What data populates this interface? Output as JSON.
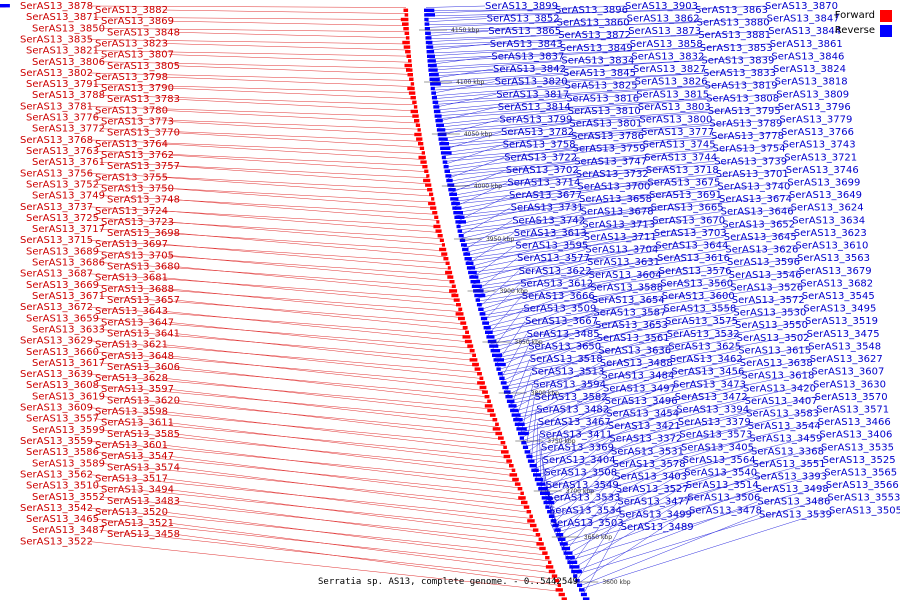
{
  "legend": {
    "forward_label": "Forward",
    "reverse_label": "Reverse",
    "forward_color": "#ff0000",
    "reverse_color": "#0000ff"
  },
  "caption": "Serratia sp. AS13, complete genome. - 0..5442549",
  "colors": {
    "forward_text": "#cc0000",
    "reverse_text": "#0000cc",
    "forward_line": "#e03030",
    "reverse_line": "#3030e0",
    "backbone": "#555555"
  },
  "ticks": [
    "4150 kbp",
    "4100 kbp",
    "4050 kbp",
    "4000 kbp",
    "3950 kbp",
    "3900 kbp",
    "3850 kbp",
    "3800 kbp",
    "3750 kbp",
    "3700 kbp",
    "3650 kbp",
    "3600 kbp"
  ],
  "forward_labels": [
    "SerAS13_3878",
    "SerAS13_3882",
    "SerAS13_3871",
    "SerAS13_3869",
    "SerAS13_3850",
    "SerAS13_3848",
    "SerAS13_3835",
    "SerAS13_3823",
    "SerAS13_3821",
    "SerAS13_3807",
    "SerAS13_3806",
    "SerAS13_3805",
    "SerAS13_3802",
    "SerAS13_3798",
    "SerAS13_3791",
    "SerAS13_3790",
    "SerAS13_3788",
    "SerAS13_3783",
    "SerAS13_3781",
    "SerAS13_3780",
    "SerAS13_3776",
    "SerAS13_3773",
    "SerAS13_3772",
    "SerAS13_3770",
    "SerAS13_3768",
    "SerAS13_3764",
    "SerAS13_3763",
    "SerAS13_3762",
    "SerAS13_3761",
    "SerAS13_3757",
    "SerAS13_3756",
    "SerAS13_3755",
    "SerAS13_3752",
    "SerAS13_3750",
    "SerAS13_3749",
    "SerAS13_3748",
    "SerAS13_3737",
    "SerAS13_3724",
    "SerAS13_3725",
    "SerAS13_3723",
    "SerAS13_3717",
    "SerAS13_3698",
    "SerAS13_3715",
    "SerAS13_3697",
    "SerAS13_3689",
    "SerAS13_3705",
    "SerAS13_3686",
    "SerAS13_3680",
    "SerAS13_3687",
    "SerAS13_3681",
    "SerAS13_3669",
    "SerAS13_3688",
    "SerAS13_3671",
    "SerAS13_3657",
    "SerAS13_3672",
    "SerAS13_3643",
    "SerAS13_3659",
    "SerAS13_3647",
    "SerAS13_3633",
    "SerAS13_3641",
    "SerAS13_3629",
    "SerAS13_3621",
    "SerAS13_3660",
    "SerAS13_3648",
    "SerAS13_3617",
    "SerAS13_3606",
    "SerAS13_3639",
    "SerAS13_3628",
    "SerAS13_3608",
    "SerAS13_3597",
    "SerAS13_3619",
    "SerAS13_3620",
    "SerAS13_3609",
    "SerAS13_3598",
    "SerAS13_3557",
    "SerAS13_3611",
    "SerAS13_3599",
    "SerAS13_3585",
    "SerAS13_3559",
    "SerAS13_3601",
    "SerAS13_3586",
    "SerAS13_3547",
    "SerAS13_3589",
    "SerAS13_3574",
    "SerAS13_3562",
    "SerAS13_3517",
    "SerAS13_3510",
    "SerAS13_3494",
    "SerAS13_3552",
    "SerAS13_3483",
    "SerAS13_3542",
    "SerAS13_3520",
    "SerAS13_3465",
    "SerAS13_3521",
    "SerAS13_3487",
    "SerAS13_3458",
    "SerAS13_3522"
  ],
  "reverse_labels": [
    "SerAS13_3899",
    "SerAS13_3896",
    "SerAS13_3903",
    "SerAS13_3863",
    "SerAS13_3870",
    "SerAS13_3852",
    "SerAS13_3860",
    "SerAS13_3862",
    "SerAS13_3880",
    "SerAS13_3847",
    "SerAS13_3865",
    "SerAS13_3872",
    "SerAS13_3873",
    "SerAS13_3881",
    "SerAS13_3844",
    "SerAS13_3843",
    "SerAS13_3849",
    "SerAS13_3858",
    "SerAS13_3853",
    "SerAS13_3861",
    "SerAS13_3837",
    "SerAS13_3834",
    "SerAS13_3832",
    "SerAS13_3839",
    "SerAS13_3846",
    "SerAS13_3842",
    "SerAS13_3845",
    "SerAS13_3827",
    "SerAS13_3833",
    "SerAS13_3824",
    "SerAS13_3820",
    "SerAS13_3825",
    "SerAS13_3826",
    "SerAS13_3819",
    "SerAS13_3818",
    "SerAS13_3817",
    "SerAS13_3816",
    "SerAS13_3815",
    "SerAS13_3808",
    "SerAS13_3809",
    "SerAS13_3814",
    "SerAS13_3810",
    "SerAS13_3803",
    "SerAS13_3795",
    "SerAS13_3796",
    "SerAS13_3799",
    "SerAS13_3801",
    "SerAS13_3800",
    "SerAS13_3789",
    "SerAS13_3779",
    "SerAS13_3782",
    "SerAS13_3786",
    "SerAS13_3777",
    "SerAS13_3778",
    "SerAS13_3766",
    "SerAS13_3758",
    "SerAS13_3759",
    "SerAS13_3745",
    "SerAS13_3754",
    "SerAS13_3743",
    "SerAS13_3722",
    "SerAS13_3747",
    "SerAS13_3744",
    "SerAS13_3739",
    "SerAS13_3721",
    "SerAS13_3702",
    "SerAS13_3732",
    "SerAS13_3718",
    "SerAS13_3701",
    "SerAS13_3746",
    "SerAS13_3714",
    "SerAS13_3700",
    "SerAS13_3675",
    "SerAS13_3740",
    "SerAS13_3699",
    "SerAS13_3677",
    "SerAS13_3658",
    "SerAS13_3691",
    "SerAS13_3674",
    "SerAS13_3649",
    "SerAS13_3731",
    "SerAS13_3678",
    "SerAS13_3665",
    "SerAS13_3646",
    "SerAS13_3624",
    "SerAS13_3742",
    "SerAS13_3713",
    "SerAS13_3670",
    "SerAS13_3652",
    "SerAS13_3634",
    "SerAS13_3613",
    "SerAS13_3711",
    "SerAS13_3703",
    "SerAS13_3645",
    "SerAS13_3623",
    "SerAS13_3595",
    "SerAS13_3704",
    "SerAS13_3644",
    "SerAS13_3626",
    "SerAS13_3610",
    "SerAS13_3577",
    "SerAS13_3631",
    "SerAS13_3616",
    "SerAS13_3596",
    "SerAS13_3563",
    "SerAS13_3622",
    "SerAS13_3604",
    "SerAS13_3576",
    "SerAS13_3546",
    "SerAS13_3679",
    "SerAS13_3612",
    "SerAS13_3588",
    "SerAS13_3560",
    "SerAS13_3526",
    "SerAS13_3682",
    "SerAS13_3666",
    "SerAS13_3654",
    "SerAS13_3600",
    "SerAS13_3572",
    "SerAS13_3545",
    "SerAS13_3509",
    "SerAS13_3587",
    "SerAS13_3558",
    "SerAS13_3530",
    "SerAS13_3495",
    "SerAS13_3667",
    "SerAS13_3653",
    "SerAS13_3575",
    "SerAS13_3550",
    "SerAS13_3519",
    "SerAS13_3485",
    "SerAS13_3561",
    "SerAS13_3532",
    "SerAS13_3502",
    "SerAS13_3475",
    "SerAS13_3650",
    "SerAS13_3636",
    "SerAS13_3625",
    "SerAS13_3615",
    "SerAS13_3548",
    "SerAS13_3518",
    "SerAS13_3488",
    "SerAS13_3462",
    "SerAS13_3638",
    "SerAS13_3627",
    "SerAS13_3513",
    "SerAS13_3484",
    "SerAS13_3456",
    "SerAS13_3618",
    "SerAS13_3607",
    "SerAS13_3594",
    "SerAS13_3497",
    "SerAS13_3473",
    "SerAS13_3420",
    "SerAS13_3630",
    "SerAS13_3582",
    "SerAS13_3496",
    "SerAS13_3472",
    "SerAS13_3407",
    "SerAS13_3570",
    "SerAS13_3482",
    "SerAS13_3454",
    "SerAS13_3394",
    "SerAS13_3583",
    "SerAS13_3571",
    "SerAS13_3467",
    "SerAS13_3421",
    "SerAS13_3379",
    "SerAS13_3544",
    "SerAS13_3466",
    "SerAS13_3411",
    "SerAS13_3372",
    "SerAS13_3573",
    "SerAS13_3459",
    "SerAS13_3406",
    "SerAS13_3369",
    "SerAS13_3531",
    "SerAS13_3405",
    "SerAS13_3368",
    "SerAS13_3535",
    "SerAS13_3404",
    "SerAS13_3578",
    "SerAS13_3564",
    "SerAS13_3551",
    "SerAS13_3525",
    "SerAS13_3508",
    "SerAS13_3403",
    "SerAS13_3540",
    "SerAS13_3393",
    "SerAS13_3565",
    "SerAS13_3549",
    "SerAS13_3527",
    "SerAS13_3514",
    "SerAS13_3498",
    "SerAS13_3566",
    "SerAS13_3533",
    "SerAS13_3477",
    "SerAS13_3506",
    "SerAS13_3486",
    "SerAS13_3553",
    "SerAS13_3534",
    "SerAS13_3499",
    "SerAS13_3478",
    "SerAS13_3539",
    "SerAS13_3505",
    "SerAS13_3503",
    "SerAS13_3489"
  ]
}
